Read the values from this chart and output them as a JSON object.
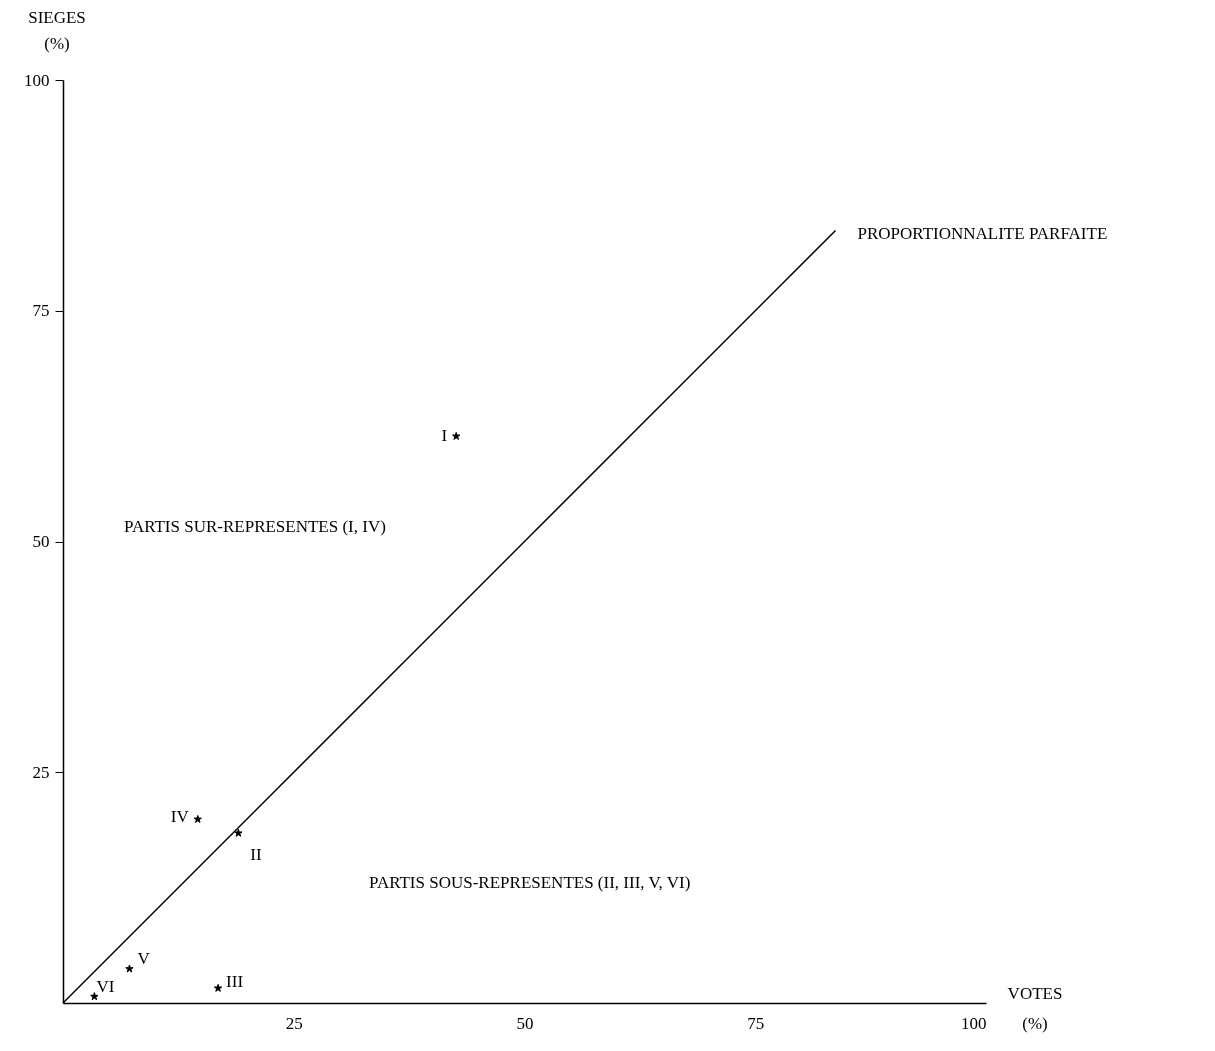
{
  "chart_data": {
    "type": "scatter",
    "xlabel": "VOTES\n(%)",
    "ylabel": "SIEGES\n(%)",
    "xlim": [
      0,
      100
    ],
    "ylim": [
      0,
      100
    ],
    "xticks": [
      25,
      50,
      75,
      100
    ],
    "yticks": [
      25,
      50,
      75,
      100
    ],
    "grid": false,
    "series": [
      {
        "marker": "star",
        "color": "#000000",
        "x": [
          42.6,
          19.0,
          16.8,
          14.6,
          7.2,
          3.4
        ],
        "values": [
          61.4,
          18.4,
          1.6,
          19.9,
          3.7,
          0.7
        ]
      },
      {
        "type": "line",
        "marker": "none",
        "name": "PROPORTIONNALITE PARFAITE",
        "color": "#000000",
        "x": [
          0,
          83.7
        ],
        "values": [
          0,
          83.7
        ]
      }
    ],
    "annotations": [
      {
        "text": "I",
        "x": 42.6,
        "y": 61.4
      },
      {
        "text": "II",
        "x": 19.0,
        "y": 18.4
      },
      {
        "text": "III",
        "x": 16.8,
        "y": 1.6
      },
      {
        "text": "IV",
        "x": 14.6,
        "y": 19.9
      },
      {
        "text": "V",
        "x": 7.2,
        "y": 3.7
      },
      {
        "text": "VI",
        "x": 3.4,
        "y": 0.7
      },
      "PARTIS SUR-REPRESENTES (I, IV)",
      "PARTIS SOUS-REPRESENTES (II, III, V, VI)"
    ]
  }
}
